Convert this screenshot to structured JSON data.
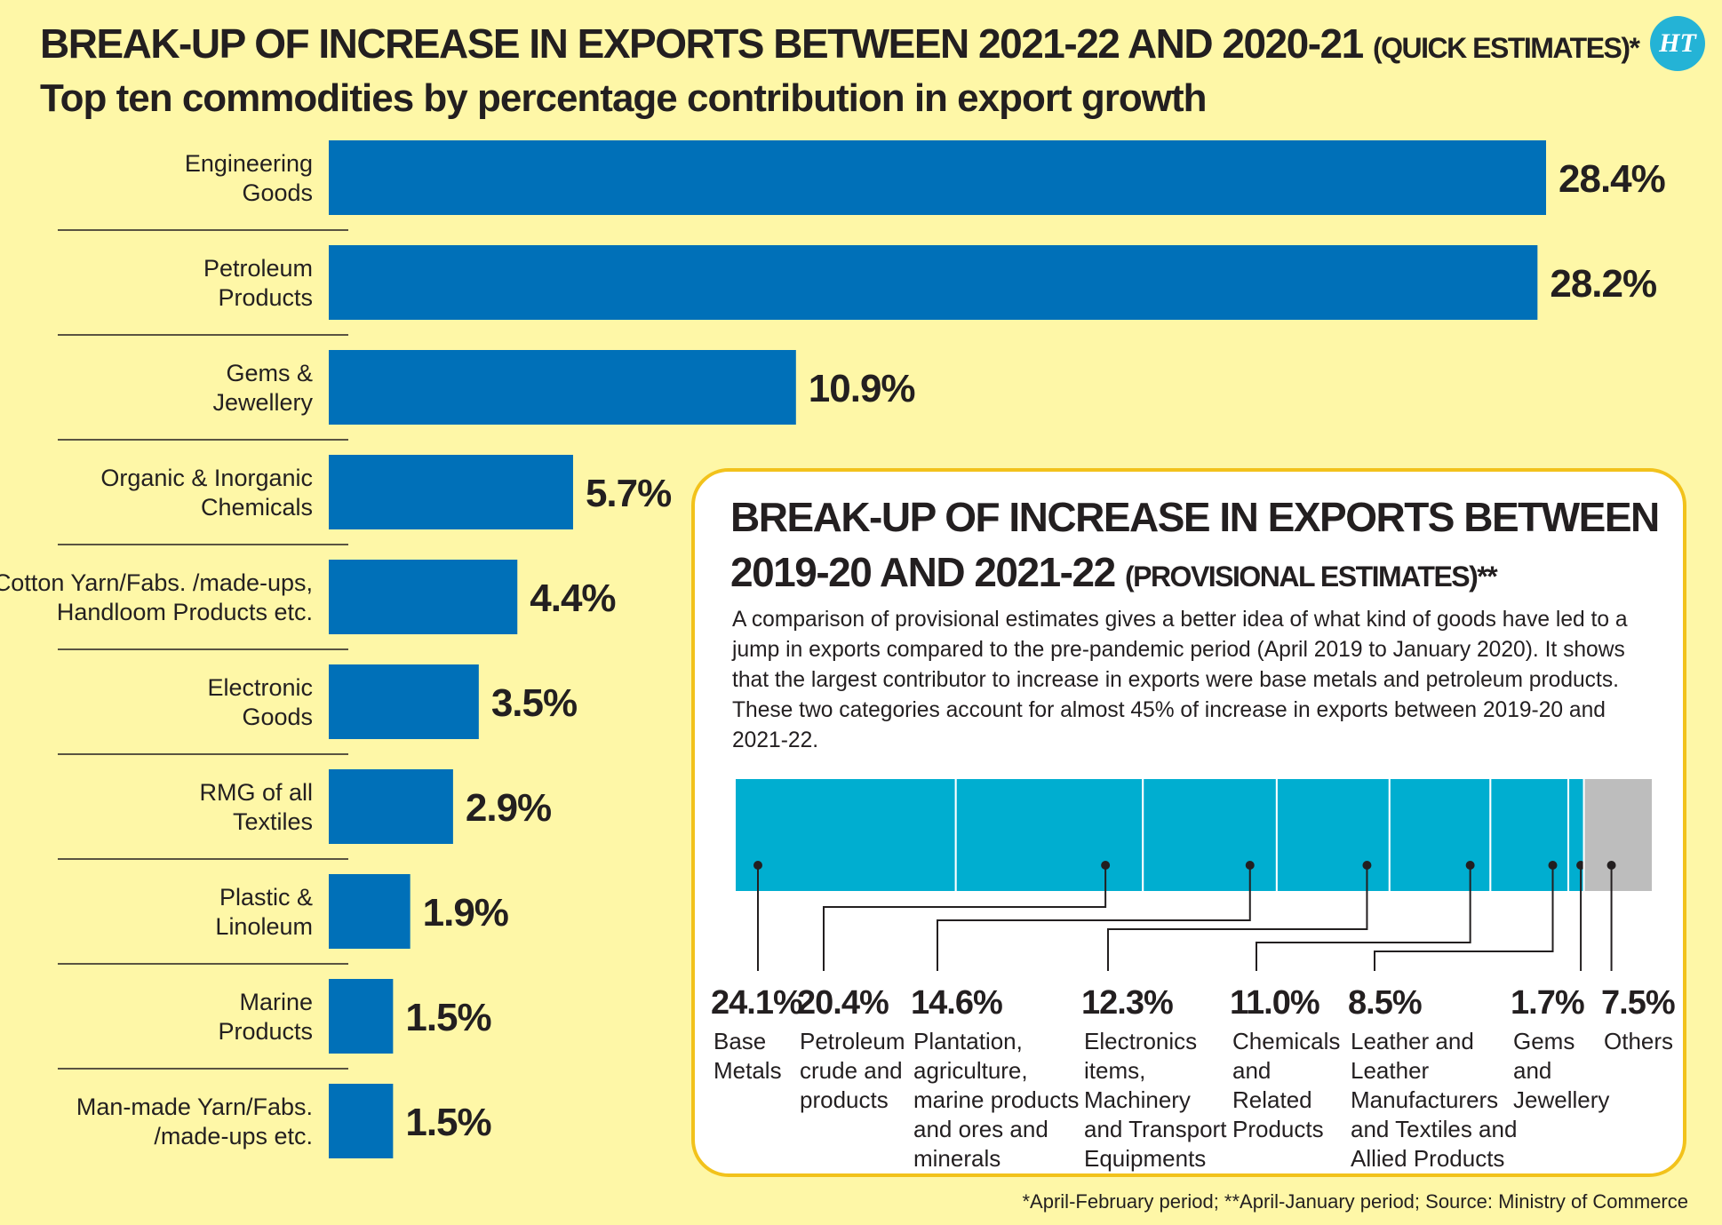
{
  "title": "BREAK-UP OF INCREASE IN EXPORTS BETWEEN 2021-22 AND 2020-21",
  "title_note": "(QUICK ESTIMATES)*",
  "subtitle": "Top ten commodities by percentage contribution in export growth",
  "logo": "HT",
  "colors": {
    "bar": "#0070b8",
    "segment": "#00aed0",
    "others": "#bdbdbd",
    "background": "#fef7a7",
    "panel_border": "#f2c21b"
  },
  "chart_data": [
    {
      "type": "bar",
      "orientation": "horizontal",
      "title": "Top ten commodities by percentage contribution in export growth",
      "categories": [
        [
          "Engineering",
          "Goods"
        ],
        [
          "Petroleum",
          "Products"
        ],
        [
          "Gems &",
          "Jewellery"
        ],
        [
          "Organic & Inorganic",
          "Chemicals"
        ],
        [
          "Cotton Yarn/Fabs. /made-ups,",
          "Handloom Products etc."
        ],
        [
          "Electronic",
          "Goods"
        ],
        [
          "RMG of all",
          "Textiles"
        ],
        [
          "Plastic &",
          "Linoleum"
        ],
        [
          "Marine",
          "Products"
        ],
        [
          "Man-made Yarn/Fabs.",
          "/made-ups etc."
        ]
      ],
      "values": [
        28.4,
        28.2,
        10.9,
        5.7,
        4.4,
        3.5,
        2.9,
        1.9,
        1.5,
        1.5
      ],
      "labels": [
        "28.4%",
        "28.2%",
        "10.9%",
        "5.7%",
        "4.4%",
        "3.5%",
        "2.9%",
        "1.9%",
        "1.5%",
        "1.5%"
      ],
      "unit": "%"
    },
    {
      "type": "bar",
      "orientation": "stacked-100",
      "title": "BREAK-UP OF INCREASE IN EXPORTS BETWEEN 2019-20 AND 2021-22",
      "segments": [
        {
          "value": 24.1,
          "label": "24.1%",
          "name": [
            "Base",
            "Metals"
          ]
        },
        {
          "value": 20.4,
          "label": "20.4%",
          "name": [
            "Petroleum",
            "crude and",
            "products"
          ]
        },
        {
          "value": 14.6,
          "label": "14.6%",
          "name": [
            "Plantation,",
            "agriculture,",
            "marine products",
            "and ores and",
            "minerals"
          ]
        },
        {
          "value": 12.3,
          "label": "12.3%",
          "name": [
            "Electronics",
            "items,",
            "Machinery",
            "and Transport",
            "Equipments"
          ]
        },
        {
          "value": 11.0,
          "label": "11.0%",
          "name": [
            "Chemicals",
            "and",
            "Related",
            "Products"
          ]
        },
        {
          "value": 8.5,
          "label": "8.5%",
          "name": [
            "Leather and",
            "Leather",
            "Manufacturers",
            "and Textiles and",
            "Allied Products"
          ]
        },
        {
          "value": 1.7,
          "label": "1.7%",
          "name": [
            "Gems",
            "and",
            "Jewellery"
          ]
        },
        {
          "value": 7.5,
          "label": "7.5%",
          "name": [
            "Others"
          ]
        }
      ]
    }
  ],
  "panel": {
    "title": "BREAK-UP OF INCREASE IN EXPORTS BETWEEN 2019-20 AND 2021-22",
    "title_note": "(PROVISIONAL ESTIMATES)**",
    "description": "A comparison of provisional estimates gives a better idea of what kind of goods have led to a jump in exports compared to the pre-pandemic period (April 2019 to January 2020). It shows that the largest contributor to increase in exports were base metals and petroleum products. These two categories account for almost 45% of increase in exports between 2019-20 and 2021-22."
  },
  "footnote": "*April-February period;  **April-January period; Source: Ministry of Commerce"
}
